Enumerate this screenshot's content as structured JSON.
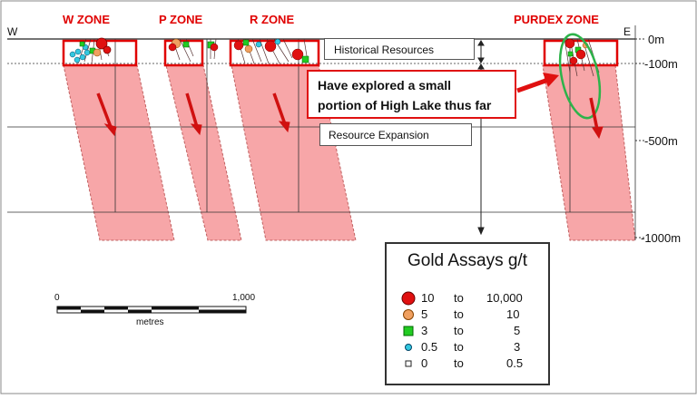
{
  "zones": [
    {
      "name": "W ZONE"
    },
    {
      "name": "P ZONE"
    },
    {
      "name": "R ZONE"
    },
    {
      "name": "PURDEX ZONE"
    }
  ],
  "directions": {
    "west": "W",
    "east": "E"
  },
  "depth_labels": [
    "0m",
    "-100m",
    "-500m",
    "-1000m"
  ],
  "boxes": {
    "historical": "Historical Resources",
    "callout_line1": "Have explored a small",
    "callout_line2": "portion of High Lake thus far",
    "expansion": "Resource Expansion"
  },
  "legend": {
    "title": "Gold Assays g/t",
    "rows": [
      {
        "from": "10",
        "to_word": "to",
        "to": "10,000",
        "color": "#e01010",
        "shape": "circle-large"
      },
      {
        "from": "5",
        "to_word": "to",
        "to": "10",
        "color": "#f0a060",
        "shape": "circle-medium"
      },
      {
        "from": "3",
        "to_word": "to",
        "to": "5",
        "color": "#22cc22",
        "shape": "square"
      },
      {
        "from": "0.5",
        "to_word": "to",
        "to": "3",
        "color": "#33c8e0",
        "shape": "circle-small"
      },
      {
        "from": "0",
        "to_word": "to",
        "to": "0.5",
        "color": "#ffffff",
        "shape": "square-small"
      }
    ]
  },
  "scale_bar": {
    "start": "0",
    "end": "1,000",
    "unit": "metres"
  },
  "colors": {
    "zone_red": "#e00000",
    "expansion_fill": "#f7a6a8",
    "arrow_red": "#d01010",
    "ellipse_green": "#2db34a"
  }
}
